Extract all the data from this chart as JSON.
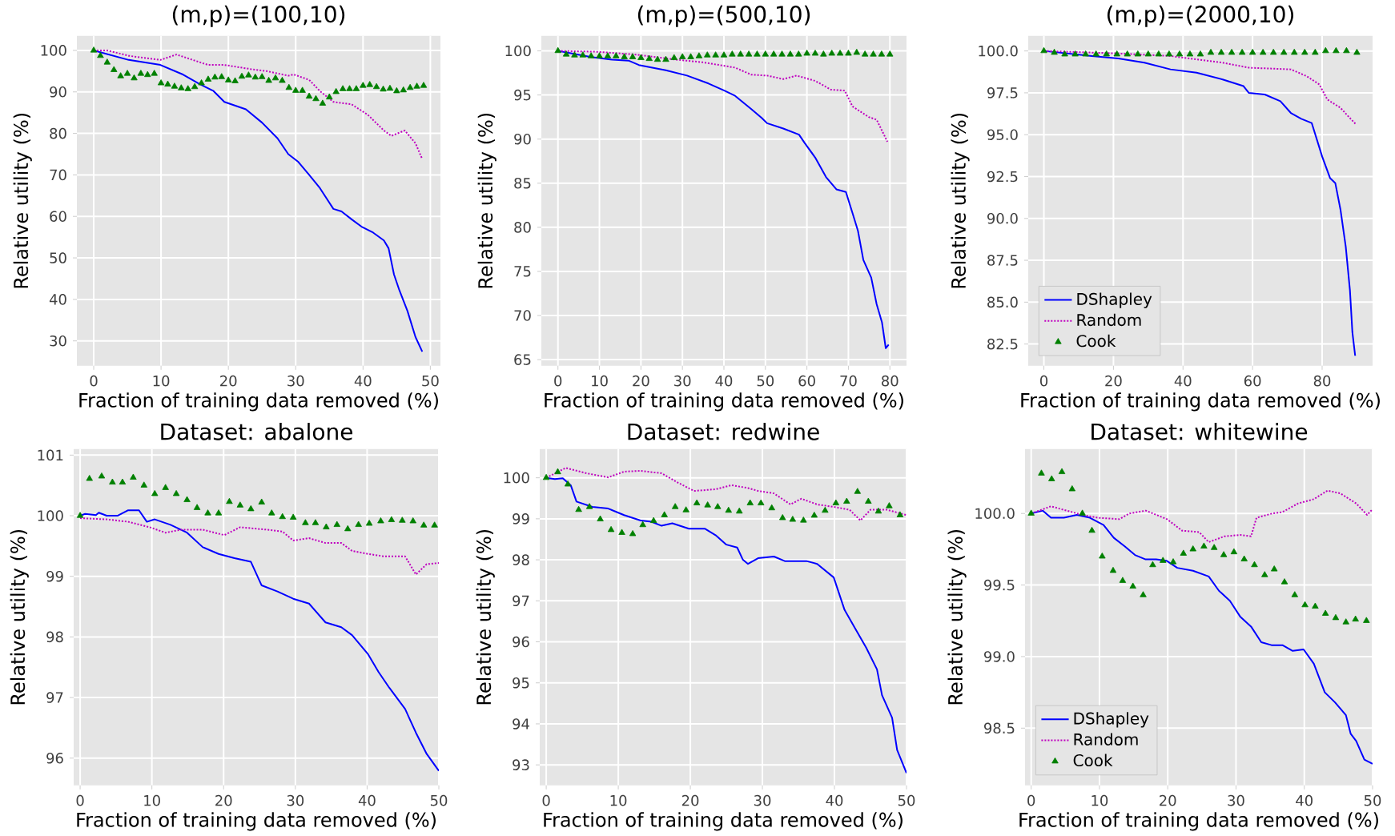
{
  "chart_data": [
    {
      "type": "line",
      "title": "(m,p)=(100,10)",
      "xlabel": "Fraction of training data removed (%)",
      "ylabel": "Relative utility (%)",
      "xlim": [
        -2.5,
        51.5
      ],
      "xticks": [
        0,
        10,
        20,
        30,
        40,
        50
      ],
      "ylim": [
        24,
        103.5
      ],
      "yticks": [
        30,
        40,
        50,
        60,
        70,
        80,
        90,
        100
      ],
      "grid": true,
      "legend": false,
      "series": [
        {
          "color": "#0000ff",
          "line_style": "solid",
          "x": [
            0,
            5.2,
            9.9,
            13.1,
            15.5,
            17.8,
            19.4,
            22.6,
            25,
            27.3,
            28.9,
            30.4,
            32,
            33.6,
            35.6,
            36.8,
            38.3,
            39.9,
            41.5,
            43.1,
            43.8,
            44.6,
            45.4,
            46.6,
            47.8,
            48.8
          ],
          "values": [
            100,
            97.7,
            96.5,
            94.3,
            92.1,
            90.2,
            87.6,
            85.8,
            82.6,
            78.8,
            75,
            73.1,
            70,
            66.8,
            61.8,
            61.2,
            59.3,
            57.4,
            56.1,
            54.2,
            52.3,
            46,
            42.2,
            37.2,
            30.9,
            27.4
          ]
        },
        {
          "color": "#bf00bf",
          "line_style": "dotted",
          "x": [
            0,
            2,
            5.2,
            9.9,
            12.3,
            14.7,
            17,
            19.4,
            23.3,
            25.7,
            28.9,
            29.7,
            32,
            33.6,
            35.6,
            38.3,
            40.7,
            43.1,
            44.2,
            46.2,
            47.8,
            48.8
          ],
          "values": [
            100,
            100,
            98.7,
            97.7,
            99,
            97.7,
            96.5,
            96.5,
            95.5,
            95,
            93.9,
            94.2,
            92.9,
            90.2,
            87.6,
            87,
            84.5,
            80.7,
            79.4,
            80.7,
            77.6,
            73.8
          ]
        },
        {
          "type": "scatter",
          "marker": "triangle",
          "color": "#008000",
          "x": [
            0,
            1,
            2,
            3,
            4,
            5,
            6,
            7,
            8,
            9,
            10,
            11,
            12,
            13,
            14,
            15,
            16,
            17,
            18,
            19,
            20,
            21,
            22,
            23,
            24,
            25,
            26,
            27,
            28,
            29,
            30,
            31,
            32,
            33,
            34,
            35,
            36,
            37,
            38,
            39,
            40,
            41,
            42,
            43,
            44,
            45,
            46,
            47,
            48,
            49
          ],
          "values": [
            100,
            98.7,
            97.1,
            95.3,
            93.8,
            94.4,
            93.3,
            94.4,
            94.1,
            94.4,
            92.1,
            91.8,
            91.3,
            90.9,
            90.7,
            91.2,
            92.1,
            93,
            93.5,
            93.6,
            92.8,
            92.6,
            93.7,
            94,
            93.5,
            93.6,
            92.7,
            93.3,
            92.7,
            91,
            90.3,
            90.3,
            88.9,
            88.3,
            87.2,
            88.7,
            90,
            90.7,
            90.7,
            90.7,
            91.5,
            91.7,
            91.2,
            90.6,
            90.8,
            90.2,
            90.4,
            91,
            91.3,
            91.5
          ]
        }
      ]
    },
    {
      "type": "line",
      "title": "(m,p)=(500,10)",
      "xlabel": "Fraction of training data removed (%)",
      "ylabel": "Relative utility (%)",
      "xlim": [
        -4,
        84
      ],
      "xticks": [
        0,
        10,
        20,
        30,
        40,
        50,
        60,
        70,
        80
      ],
      "ylim": [
        64.3,
        101.7
      ],
      "yticks": [
        65,
        70,
        75,
        80,
        85,
        90,
        95,
        100
      ],
      "grid": true,
      "legend": false,
      "series": [
        {
          "color": "#0000ff",
          "line_style": "solid",
          "x": [
            0,
            8,
            13.1,
            17,
            19.5,
            26,
            31.1,
            36.3,
            40.1,
            42.7,
            46.6,
            49.1,
            50.4,
            54.3,
            58.1,
            59.4,
            62,
            64.6,
            67.1,
            69.4,
            71,
            72.3,
            73.6,
            75.5,
            76.8,
            78.1,
            79,
            79.7
          ],
          "values": [
            100,
            99.3,
            99,
            98.9,
            98.4,
            97.8,
            97.2,
            96.3,
            95.5,
            94.9,
            93.4,
            92.4,
            91.8,
            91.2,
            90.5,
            89.6,
            87.9,
            85.7,
            84.3,
            84,
            81.6,
            79.6,
            76.3,
            74.3,
            71.3,
            69.2,
            66.3,
            66.7
          ]
        },
        {
          "color": "#bf00bf",
          "line_style": "dotted",
          "x": [
            0,
            9.3,
            18.3,
            28.6,
            35,
            42.7,
            46.6,
            50.4,
            54.3,
            57.5,
            62,
            65.8,
            69.1,
            71,
            74.9,
            76.8,
            79.4
          ],
          "values": [
            100,
            99.9,
            99.6,
            99,
            98.7,
            98.1,
            97.3,
            97.2,
            96.8,
            97.2,
            96.6,
            95.6,
            95.5,
            93.7,
            92.5,
            92.2,
            89.7
          ]
        },
        {
          "type": "scatter",
          "marker": "triangle",
          "color": "#008000",
          "x": [
            0,
            2,
            4,
            6,
            8,
            10,
            12,
            14,
            16,
            18,
            20,
            22,
            24,
            26,
            28,
            30,
            32,
            34,
            36,
            38,
            40,
            42,
            44,
            46,
            48,
            50,
            52,
            54,
            56,
            58,
            60,
            62,
            64,
            66,
            68,
            70,
            72,
            74,
            76,
            78,
            80
          ],
          "values": [
            100,
            99.6,
            99.5,
            99.5,
            99.4,
            99.4,
            99.4,
            99.4,
            99.3,
            99.3,
            99.2,
            99.1,
            99,
            99,
            99.2,
            99.3,
            99.3,
            99.4,
            99.5,
            99.5,
            99.5,
            99.6,
            99.6,
            99.6,
            99.6,
            99.6,
            99.6,
            99.6,
            99.6,
            99.6,
            99.7,
            99.7,
            99.6,
            99.7,
            99.7,
            99.7,
            99.8,
            99.6,
            99.6,
            99.6,
            99.6
          ]
        }
      ]
    },
    {
      "type": "line",
      "title": "(m,p)=(2000,10)",
      "xlabel": "Fraction of training data removed (%)",
      "ylabel": "Relative utility (%)",
      "xlim": [
        -4.5,
        94.5
      ],
      "xticks": [
        0,
        20,
        40,
        60,
        80
      ],
      "ylim": [
        81.2,
        100.9
      ],
      "yticks": [
        {
          "value": 82.5,
          "label": "82.5"
        },
        {
          "value": 85,
          "label": "85.0"
        },
        {
          "value": 87.5,
          "label": "87.5"
        },
        {
          "value": 90,
          "label": "90.0"
        },
        {
          "value": 92.5,
          "label": "92.5"
        },
        {
          "value": 95,
          "label": "95.0"
        },
        {
          "value": 97.5,
          "label": "97.5"
        },
        {
          "value": 100,
          "label": "100.0"
        }
      ],
      "grid": true,
      "legend": "bottom left",
      "series": [
        {
          "name": "DShapley",
          "color": "#0000ff",
          "line_style": "solid",
          "x": [
            0,
            13.8,
            21.4,
            28.9,
            36.4,
            43.9,
            51.4,
            57.4,
            58.9,
            63.5,
            68,
            71,
            74,
            77,
            78.5,
            80,
            82.3,
            83.8,
            85.3,
            86.8,
            88,
            88.7,
            89.5
          ],
          "values": [
            100,
            99.7,
            99.55,
            99.3,
            98.9,
            98.7,
            98.3,
            97.9,
            97.5,
            97.4,
            97,
            96.3,
            95.95,
            95.7,
            94.7,
            93.7,
            92.4,
            92.1,
            90.5,
            88.3,
            85.7,
            83.2,
            81.8
          ]
        },
        {
          "name": "Random",
          "color": "#bf00bf",
          "line_style": "dotted",
          "x": [
            0,
            21.4,
            36.4,
            43.9,
            51.4,
            58.9,
            65,
            71,
            75.5,
            79.2,
            81.5,
            85.3,
            87.5,
            89.8
          ],
          "values": [
            100,
            99.85,
            99.7,
            99.5,
            99.3,
            99,
            98.95,
            98.9,
            98.5,
            98,
            97.1,
            96.6,
            96.1,
            95.6
          ]
        },
        {
          "name": "Cook",
          "type": "scatter",
          "marker": "triangle",
          "color": "#008000",
          "x": [
            0,
            3,
            6,
            9,
            12,
            15,
            18,
            21,
            24,
            27,
            30,
            33,
            36,
            39,
            42,
            45,
            48,
            51,
            54,
            57,
            60,
            63,
            66,
            69,
            72,
            75,
            78,
            81,
            84,
            87,
            90
          ],
          "values": [
            100,
            99.9,
            99.8,
            99.8,
            99.8,
            99.8,
            99.8,
            99.8,
            99.8,
            99.8,
            99.8,
            99.8,
            99.8,
            99.8,
            99.8,
            99.8,
            99.9,
            99.9,
            99.9,
            99.9,
            99.9,
            99.9,
            99.9,
            99.9,
            99.9,
            99.9,
            99.9,
            100,
            100,
            100,
            99.9
          ]
        }
      ]
    },
    {
      "type": "line",
      "title": "Dataset: abalone",
      "xlabel": "Fraction of training data removed (%)",
      "ylabel": "Relative utility (%)",
      "xlim": [
        -0.9,
        50
      ],
      "xticks": [
        0,
        10,
        20,
        30,
        40,
        50
      ],
      "ylim": [
        95.55,
        101.1
      ],
      "yticks": [
        96,
        97,
        98,
        99,
        100,
        101
      ],
      "grid": true,
      "legend": false,
      "series": [
        {
          "color": "#0000ff",
          "line_style": "solid",
          "x": [
            0,
            0.7,
            2.2,
            2.6,
            3.7,
            5.2,
            6.7,
            8.2,
            9.3,
            10.4,
            12.6,
            14.9,
            17.1,
            19.3,
            21.5,
            23.8,
            25.3,
            27.5,
            29.7,
            31.9,
            34.2,
            36.4,
            37.9,
            40.1,
            41.6,
            43.1,
            45.3,
            46.8,
            48.3,
            50
          ],
          "values": [
            100,
            100.03,
            100.01,
            100.05,
            100,
            100,
            100.09,
            100.09,
            99.9,
            99.94,
            99.85,
            99.72,
            99.48,
            99.37,
            99.3,
            99.24,
            98.85,
            98.75,
            98.63,
            98.55,
            98.24,
            98.16,
            98.03,
            97.72,
            97.42,
            97.16,
            96.81,
            96.42,
            96.07,
            95.79
          ]
        },
        {
          "color": "#bf00bf",
          "line_style": "dotted",
          "x": [
            0,
            3.7,
            6.7,
            9.7,
            11.9,
            14.1,
            17.1,
            20.1,
            22.3,
            26,
            28.2,
            29.7,
            31.9,
            34.2,
            36.4,
            37.9,
            40.1,
            42.3,
            45.3,
            46.8,
            48.3,
            50
          ],
          "values": [
            99.96,
            99.94,
            99.9,
            99.81,
            99.72,
            99.77,
            99.77,
            99.68,
            99.81,
            99.77,
            99.74,
            99.59,
            99.63,
            99.55,
            99.55,
            99.42,
            99.37,
            99.33,
            99.33,
            99.03,
            99.2,
            99.22
          ]
        },
        {
          "type": "scatter",
          "marker": "triangle",
          "color": "#008000",
          "x": [
            0,
            1.3,
            3,
            4.5,
            5.9,
            7.4,
            8.9,
            10.4,
            11.9,
            13.4,
            14.9,
            16.3,
            17.8,
            19.3,
            20.8,
            22.3,
            23.8,
            25.3,
            26.7,
            28.2,
            29.7,
            31.4,
            32.8,
            34.3,
            35.8,
            37.3,
            38.8,
            40.3,
            41.9,
            43.4,
            44.9,
            46.4,
            47.9,
            49.4
          ],
          "values": [
            100,
            100.61,
            100.65,
            100.55,
            100.55,
            100.63,
            100.5,
            100.36,
            100.46,
            100.36,
            100.26,
            100.13,
            100.04,
            100.04,
            100.23,
            100.17,
            100.11,
            100.22,
            100.04,
            99.98,
            99.97,
            99.88,
            99.88,
            99.81,
            99.85,
            99.78,
            99.85,
            99.87,
            99.91,
            99.93,
            99.92,
            99.91,
            99.84,
            99.84
          ]
        }
      ]
    },
    {
      "type": "line",
      "title": "Dataset: redwine",
      "xlabel": "Fraction of training data removed (%)",
      "ylabel": "Relative utility (%)",
      "xlim": [
        -0.9,
        50
      ],
      "xticks": [
        0,
        10,
        20,
        30,
        40,
        50
      ],
      "ylim": [
        92.5,
        100.7
      ],
      "yticks": [
        93,
        94,
        95,
        96,
        97,
        98,
        99,
        100
      ],
      "grid": true,
      "legend": false,
      "series": [
        {
          "color": "#0000ff",
          "line_style": "solid",
          "x": [
            0,
            1.2,
            2.3,
            3.4,
            4.2,
            6.4,
            8.6,
            10.8,
            13.1,
            14.6,
            16,
            17.5,
            19.8,
            22,
            23.5,
            25,
            26.5,
            27.3,
            28,
            29.4,
            31.6,
            33.1,
            36.1,
            37.6,
            39.9,
            41.4,
            42.9,
            44.4,
            45.9,
            46.6,
            48,
            48.7,
            50
          ],
          "values": [
            100,
            99.97,
            99.99,
            99.82,
            99.42,
            99.29,
            99.25,
            99.09,
            98.96,
            98.93,
            98.83,
            98.89,
            98.76,
            98.76,
            98.6,
            98.37,
            98.3,
            98,
            97.9,
            98.04,
            98.08,
            97.97,
            97.97,
            97.9,
            97.57,
            96.78,
            96.32,
            95.86,
            95.33,
            94.7,
            94.15,
            93.36,
            92.8
          ]
        },
        {
          "color": "#bf00bf",
          "line_style": "dotted",
          "x": [
            0,
            2.7,
            5.6,
            8.6,
            10.8,
            13.1,
            16,
            18.3,
            20.5,
            23.5,
            25.7,
            28,
            29.4,
            31.6,
            33.9,
            35.4,
            37.6,
            39.9,
            42.1,
            43.6,
            45,
            47.3,
            50
          ],
          "values": [
            100,
            100.24,
            100.11,
            100.01,
            100.15,
            100.17,
            100.11,
            99.88,
            99.68,
            99.72,
            99.82,
            99.75,
            99.68,
            99.62,
            99.35,
            99.49,
            99.35,
            99.29,
            99.22,
            98.96,
            99.22,
            99.22,
            99.09
          ]
        },
        {
          "type": "scatter",
          "marker": "triangle",
          "color": "#008000",
          "x": [
            0,
            1.6,
            3,
            4.5,
            6,
            7.5,
            9,
            10.5,
            12,
            13.4,
            14.9,
            16.4,
            17.9,
            19.4,
            20.9,
            22.4,
            23.8,
            25.3,
            26.8,
            28.3,
            29.8,
            31.3,
            32.8,
            34.2,
            35.7,
            37.2,
            38.7,
            40.2,
            41.7,
            43.2,
            44.7,
            46.1,
            47.6,
            49.1
          ],
          "values": [
            100,
            100.14,
            99.84,
            99.22,
            99.29,
            98.99,
            98.73,
            98.66,
            98.63,
            98.85,
            98.95,
            99.09,
            99.29,
            99.21,
            99.38,
            99.33,
            99.29,
            99.2,
            99.18,
            99.38,
            99.38,
            99.26,
            99.02,
            98.98,
            98.96,
            99.08,
            99.2,
            99.38,
            99.42,
            99.66,
            99.42,
            99.18,
            99.31,
            99.09
          ]
        }
      ]
    },
    {
      "type": "line",
      "title": "Dataset: whitewine",
      "xlabel": "Fraction of training data removed (%)",
      "ylabel": "Relative utility (%)",
      "xlim": [
        -0.9,
        50
      ],
      "xticks": [
        0,
        10,
        20,
        30,
        40,
        50
      ],
      "ylim": [
        98.1,
        100.45
      ],
      "yticks": [
        {
          "value": 98.5,
          "label": "98.5"
        },
        {
          "value": 99,
          "label": "99.0"
        },
        {
          "value": 99.5,
          "label": "99.5"
        },
        {
          "value": 100,
          "label": "100.0"
        }
      ],
      "grid": true,
      "legend": "bottom left",
      "series": [
        {
          "name": "DShapley",
          "color": "#0000ff",
          "line_style": "solid",
          "x": [
            0,
            1.7,
            2.9,
            4.8,
            6.7,
            8.6,
            10.6,
            12.1,
            13.7,
            15.2,
            16.7,
            18.3,
            19.8,
            21.4,
            23.7,
            26,
            27.5,
            29.1,
            30.6,
            32.2,
            33.7,
            35.2,
            36.8,
            38.3,
            39.9,
            41.4,
            43,
            44.5,
            46.1,
            46.8,
            47.6,
            48.8,
            50
          ],
          "values": [
            100,
            100.02,
            99.97,
            99.97,
            99.99,
            99.97,
            99.92,
            99.83,
            99.77,
            99.71,
            99.68,
            99.68,
            99.67,
            99.62,
            99.6,
            99.56,
            99.46,
            99.39,
            99.28,
            99.21,
            99.1,
            99.08,
            99.08,
            99.04,
            99.05,
            98.95,
            98.75,
            98.68,
            98.59,
            98.46,
            98.41,
            98.28,
            98.25
          ]
        },
        {
          "name": "Random",
          "color": "#bf00bf",
          "line_style": "dotted",
          "x": [
            0,
            2.9,
            5.2,
            7.5,
            9.8,
            12.9,
            14.4,
            16.8,
            19.9,
            22.1,
            24.6,
            26,
            28.3,
            30.6,
            32.2,
            33,
            35.3,
            36.8,
            39.1,
            41.4,
            43.4,
            45.3,
            47.6,
            49.2,
            50
          ],
          "values": [
            100,
            100.05,
            100.02,
            99.99,
            99.97,
            99.96,
            100,
            100.02,
            99.96,
            99.88,
            99.87,
            99.8,
            99.84,
            99.85,
            99.84,
            99.97,
            100,
            100.01,
            100.07,
            100.1,
            100.16,
            100.14,
            100.07,
            99.99,
            100.03
          ]
        },
        {
          "name": "Cook",
          "type": "scatter",
          "marker": "triangle",
          "color": "#008000",
          "x": [
            0,
            1.5,
            3,
            4.5,
            6,
            7.5,
            8.9,
            10.4,
            12,
            13.4,
            14.9,
            16.4,
            17.8,
            19.3,
            20.8,
            22.3,
            23.7,
            25.3,
            26.8,
            28.2,
            29.7,
            31.2,
            32.7,
            34.2,
            35.6,
            37.1,
            38.6,
            40.1,
            41.6,
            43.1,
            44.6,
            46.1,
            47.5,
            49.1
          ],
          "values": [
            100,
            100.28,
            100.24,
            100.29,
            100.17,
            100,
            99.88,
            99.7,
            99.6,
            99.53,
            99.49,
            99.43,
            99.64,
            99.67,
            99.66,
            99.72,
            99.75,
            99.77,
            99.76,
            99.71,
            99.73,
            99.68,
            99.64,
            99.57,
            99.61,
            99.52,
            99.43,
            99.36,
            99.35,
            99.3,
            99.27,
            99.24,
            99.26,
            99.25
          ]
        }
      ]
    }
  ]
}
